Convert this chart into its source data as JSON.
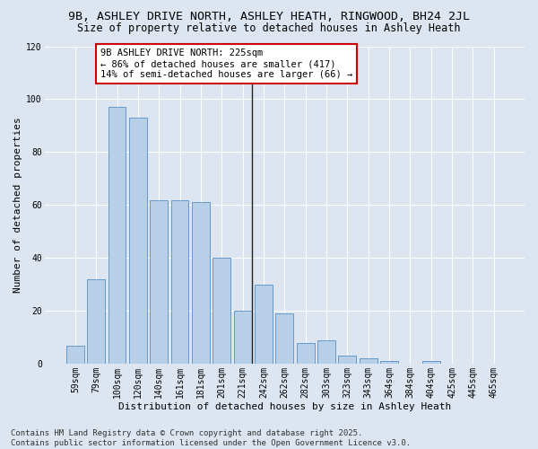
{
  "title1": "9B, ASHLEY DRIVE NORTH, ASHLEY HEATH, RINGWOOD, BH24 2JL",
  "title2": "Size of property relative to detached houses in Ashley Heath",
  "xlabel": "Distribution of detached houses by size in Ashley Heath",
  "ylabel": "Number of detached properties",
  "categories": [
    "59sqm",
    "79sqm",
    "100sqm",
    "120sqm",
    "140sqm",
    "161sqm",
    "181sqm",
    "201sqm",
    "221sqm",
    "242sqm",
    "262sqm",
    "282sqm",
    "303sqm",
    "323sqm",
    "343sqm",
    "364sqm",
    "384sqm",
    "404sqm",
    "425sqm",
    "445sqm",
    "465sqm"
  ],
  "values": [
    7,
    32,
    97,
    93,
    62,
    62,
    61,
    40,
    20,
    30,
    19,
    8,
    9,
    3,
    2,
    1,
    0,
    1,
    0,
    0,
    0
  ],
  "bar_color": "#b8cfe8",
  "bar_edge_color": "#6699cc",
  "highlight_line_index": 8,
  "annotation_text": "9B ASHLEY DRIVE NORTH: 225sqm\n← 86% of detached houses are smaller (417)\n14% of semi-detached houses are larger (66) →",
  "annotation_box_color": "#ffffff",
  "annotation_box_edge_color": "#cc0000",
  "ylim": [
    0,
    120
  ],
  "yticks": [
    0,
    20,
    40,
    60,
    80,
    100,
    120
  ],
  "bg_color": "#dde5f0",
  "plot_bg_color": "#dde5f0",
  "footer_text": "Contains HM Land Registry data © Crown copyright and database right 2025.\nContains public sector information licensed under the Open Government Licence v3.0.",
  "title1_fontsize": 9.5,
  "title2_fontsize": 8.5,
  "xlabel_fontsize": 8,
  "ylabel_fontsize": 8,
  "tick_fontsize": 7,
  "annotation_fontsize": 7.5,
  "footer_fontsize": 6.5
}
